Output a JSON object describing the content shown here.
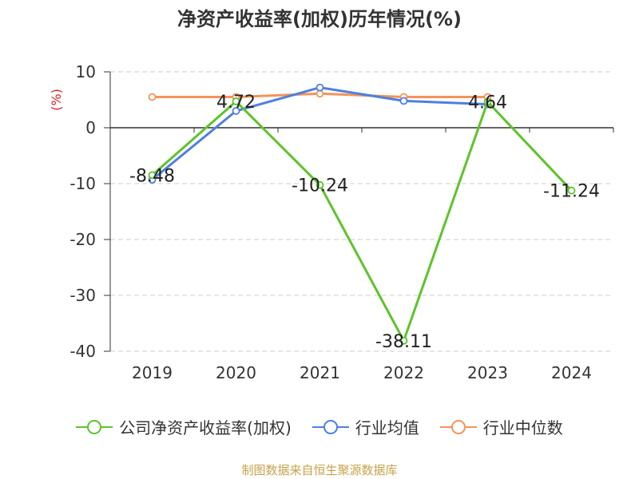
{
  "title": "净资产收益率(加权)历年情况(%)",
  "source_text": "制图数据来自恒生聚源数据库",
  "chart_data": {
    "type": "line",
    "categories": [
      "2019",
      "2020",
      "2021",
      "2022",
      "2023",
      "2024"
    ],
    "ylabel": "(%)",
    "ylim": [
      -40,
      10
    ],
    "yticks": [
      10,
      0,
      -10,
      -20,
      -30,
      -40
    ],
    "grid": true,
    "legend_position": "bottom",
    "series": [
      {
        "name": "公司净资产收益率(加权)",
        "color": "#5cc42a",
        "values": [
          -8.48,
          4.72,
          -10.24,
          -38.11,
          4.64,
          -11.24
        ],
        "labels": [
          "-8.48",
          "4.72",
          "-10.24",
          "-38.11",
          "4.64",
          "-11.24"
        ]
      },
      {
        "name": "行业均值",
        "color": "#4f7fe0",
        "values": [
          -9.3,
          3.0,
          7.2,
          4.8,
          4.2,
          null
        ]
      },
      {
        "name": "行业中位数",
        "color": "#f5935a",
        "values": [
          5.5,
          5.5,
          6.1,
          5.5,
          5.5,
          null
        ]
      }
    ]
  }
}
